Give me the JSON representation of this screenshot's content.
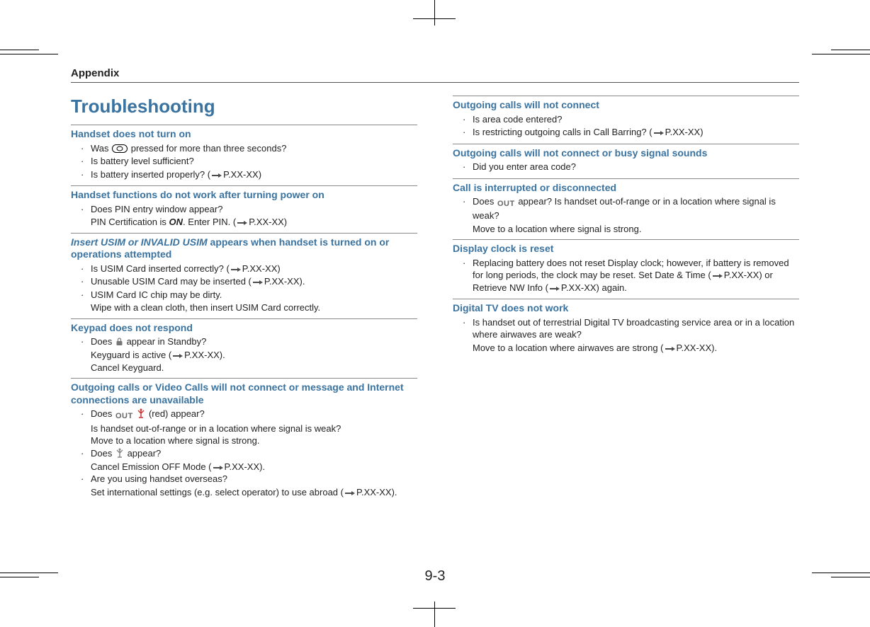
{
  "header": "Appendix",
  "title": "Troubleshooting",
  "pageNumber": "9-3",
  "colors": {
    "accent": "#3a73a0",
    "text": "#222",
    "rule": "#888"
  },
  "left": [
    {
      "head": "Handset does not turn on",
      "items": [
        {
          "t": "Was ",
          "afterIcon": " pressed for more than three seconds?",
          "icon": "power-oval"
        },
        {
          "t": "Is battery level sufficient?"
        },
        {
          "t": "Is battery inserted properly? (",
          "refSuffix": "P.XX-XX)"
        }
      ]
    },
    {
      "head": "Handset functions do not work after turning power on",
      "items": [
        {
          "t": "Does PIN entry window appear?"
        }
      ],
      "cont": [
        {
          "pre": "PIN Certification is ",
          "on": "ON",
          "post": ". Enter PIN. (",
          "refSuffix": "P.XX-XX)"
        }
      ]
    },
    {
      "headItal": "Insert USIM or INVALID USIM",
      "headRest": " appears when handset is turned on or operations attempted",
      "items": [
        {
          "t": "Is USIM Card inserted correctly? (",
          "refSuffix": "P.XX-XX)"
        },
        {
          "t": "Unusable USIM Card may be inserted (",
          "refSuffix": "P.XX-XX)."
        },
        {
          "t": "USIM Card IC chip may be dirty."
        }
      ],
      "cont": [
        {
          "pre": "Wipe with a clean cloth, then insert USIM Card correctly."
        }
      ]
    },
    {
      "head": "Keypad does not respond",
      "items": [
        {
          "t": "Does ",
          "icon": "lock",
          "afterIcon": " appear in Standby?"
        }
      ],
      "cont": [
        {
          "pre": "Keyguard is active (",
          "refSuffix": "P.XX-XX)."
        },
        {
          "pre": "Cancel Keyguard."
        }
      ]
    },
    {
      "head": "Outgoing calls or Video Calls will not connect or message and Internet connections are unavailable",
      "items": [
        {
          "t": "Does ",
          "icon": "out-antenna-red",
          "afterIcon": " (red) appear?"
        }
      ],
      "cont": [
        {
          "pre": "Is handset out-of-range or in a location where signal is weak?"
        },
        {
          "pre": "Move to a location where signal is strong."
        }
      ],
      "items2": [
        {
          "t": "Does ",
          "icon": "antenna-grey",
          "afterIcon": " appear?"
        }
      ],
      "cont2": [
        {
          "pre": "Cancel Emission OFF Mode (",
          "refSuffix": "P.XX-XX)."
        }
      ],
      "items3": [
        {
          "t": "Are you using handset overseas?"
        }
      ],
      "cont3": [
        {
          "pre": "Set international settings (e.g. select operator) to use abroad (",
          "refSuffix": "P.XX-XX)."
        }
      ]
    }
  ],
  "right": [
    {
      "head": "Outgoing calls will not connect",
      "items": [
        {
          "t": "Is area code entered?"
        },
        {
          "t": "Is restricting outgoing calls in Call Barring? (",
          "refSuffix": "P.XX-XX)"
        }
      ]
    },
    {
      "head": "Outgoing calls will not connect or busy signal sounds",
      "items": [
        {
          "t": "Did you enter area code?"
        }
      ]
    },
    {
      "head": "Call is interrupted or disconnected",
      "items": [
        {
          "t": "Does ",
          "icon": "out",
          "afterIcon": " appear? Is handset out-of-range or in a location where signal is weak?"
        }
      ],
      "cont": [
        {
          "pre": "Move to a location where signal is strong."
        }
      ]
    },
    {
      "head": "Display clock is reset",
      "items": [
        {
          "t": "Replacing battery does not reset Display clock; however, if battery is removed for long periods, the clock may be reset. Set Date & Time (",
          "refSuffix": "P.XX-XX) or Retrieve NW Info (",
          "refSuffix2": "P.XX-XX) again."
        }
      ]
    },
    {
      "head": "Digital TV does not work",
      "items": [
        {
          "t": "Is handset out of terrestrial Digital TV broadcasting service area or in a location where airwaves are weak?"
        }
      ],
      "cont": [
        {
          "pre": "Move to a location where airwaves are strong (",
          "refSuffix": "P.XX-XX)."
        }
      ]
    }
  ]
}
